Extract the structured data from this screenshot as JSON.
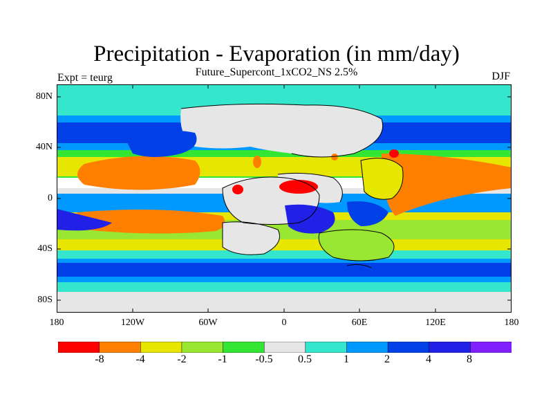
{
  "header": {
    "title": "Precipitation - Evaporation (in mm/day)",
    "subtitle": "Future_Supercont_1xCO2_NS 2.5%",
    "left_label": "Expt = teurg",
    "right_label": "DJF"
  },
  "chart_data": {
    "type": "map",
    "title": "Precipitation - Evaporation (in mm/day)",
    "subtitle": "Future_Supercont_1xCO2_NS 2.5%",
    "left_string": "Expt = teurg",
    "right_string": "DJF",
    "x_ticks": [
      "180",
      "120W",
      "60W",
      "0",
      "60E",
      "120E",
      "180"
    ],
    "y_ticks": [
      "80N",
      "40N",
      "0",
      "40S",
      "80S"
    ],
    "lon_range": [
      -180,
      180
    ],
    "lat_range": [
      -90,
      90
    ],
    "colorbar": {
      "levels": [
        "-8",
        "-4",
        "-2",
        "-1",
        "-0.5",
        "0.5",
        "1",
        "2",
        "4",
        "8"
      ],
      "colors": [
        "#ff0000",
        "#ff7f00",
        "#e6e600",
        "#99e633",
        "#33e633",
        "#e6e6e6",
        "#33e6cc",
        "#0099ff",
        "#0040e6",
        "#2020e6",
        "#8020ff"
      ]
    },
    "colors": {
      "land_mask": "#e6e6e6",
      "coastline": "#000000"
    }
  }
}
